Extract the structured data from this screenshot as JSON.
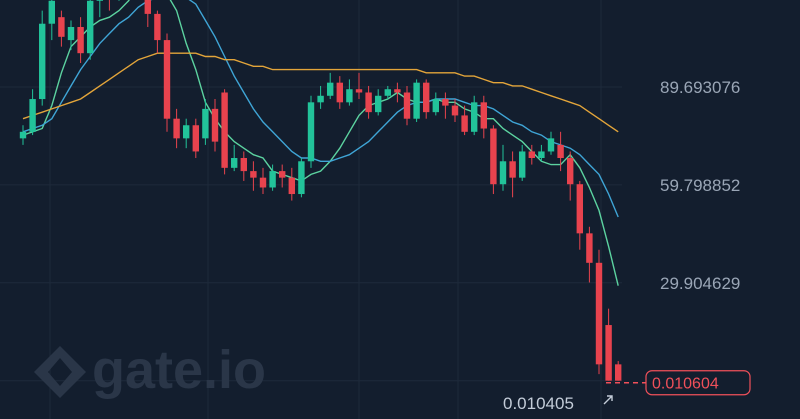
{
  "chart_data": {
    "type": "candlestick",
    "title": "",
    "watermark": "gate.io",
    "y_ticks": [
      {
        "value": 89.693076,
        "label": "89.693076"
      },
      {
        "value": 59.798852,
        "label": "59.798852"
      },
      {
        "value": 29.904629,
        "label": "29.904629"
      }
    ],
    "ylim": [
      -1,
      119.6
    ],
    "grid": true,
    "candles": [
      [
        74,
        76,
        72,
        78
      ],
      [
        76,
        86,
        75,
        89
      ],
      [
        86,
        109,
        84,
        113
      ],
      [
        109,
        116,
        104,
        120
      ],
      [
        111,
        105,
        102,
        113
      ],
      [
        104,
        108,
        101,
        110
      ],
      [
        108,
        100,
        97,
        111
      ],
      [
        100,
        116,
        98,
        119
      ],
      [
        116,
        123,
        111,
        126
      ],
      [
        123,
        118,
        113,
        125
      ],
      [
        118,
        127,
        116,
        130
      ],
      [
        127,
        124,
        119,
        129
      ],
      [
        124,
        121,
        118,
        128
      ],
      [
        121,
        112,
        108,
        124
      ],
      [
        112,
        104,
        100,
        113
      ],
      [
        104,
        80,
        76,
        106
      ],
      [
        80,
        74,
        71,
        83
      ],
      [
        74,
        78,
        71,
        80
      ],
      [
        78,
        70,
        68,
        80
      ],
      [
        74,
        83,
        72,
        86
      ],
      [
        83,
        73,
        70,
        86
      ],
      [
        88,
        65,
        63,
        89
      ],
      [
        65,
        68,
        64,
        72
      ],
      [
        68,
        64,
        61,
        70
      ],
      [
        64,
        62,
        58,
        67
      ],
      [
        62,
        59,
        57,
        65
      ],
      [
        59,
        64,
        58,
        66
      ],
      [
        64,
        62,
        59,
        66
      ],
      [
        62,
        57,
        55,
        65
      ],
      [
        57,
        67,
        56,
        68
      ],
      [
        67,
        85,
        65,
        87
      ],
      [
        85,
        87,
        83,
        90
      ],
      [
        87,
        91,
        86,
        94
      ],
      [
        91,
        85,
        83,
        93
      ],
      [
        85,
        89,
        84,
        92
      ],
      [
        89,
        88,
        86,
        94
      ],
      [
        88,
        82,
        80,
        90
      ],
      [
        82,
        87,
        81,
        89
      ],
      [
        87,
        89,
        86,
        90
      ],
      [
        89,
        88,
        85,
        91
      ],
      [
        88,
        80,
        78,
        90
      ],
      [
        80,
        91,
        79,
        92
      ],
      [
        91,
        82,
        80,
        92
      ],
      [
        82,
        86,
        81,
        88
      ],
      [
        86,
        84,
        80,
        88
      ],
      [
        84,
        81,
        79,
        86
      ],
      [
        81,
        76,
        75,
        84
      ],
      [
        76,
        85,
        75,
        87
      ],
      [
        85,
        77,
        74,
        87
      ],
      [
        77,
        60,
        57,
        78
      ],
      [
        60,
        67,
        58,
        72
      ],
      [
        67,
        62,
        56,
        70
      ],
      [
        62,
        70,
        61,
        72
      ],
      [
        70,
        68,
        66,
        72
      ],
      [
        68,
        70,
        67,
        72
      ],
      [
        70,
        74,
        69,
        76
      ],
      [
        72,
        68,
        64,
        76
      ],
      [
        68,
        60,
        55,
        70
      ],
      [
        60,
        45,
        40,
        61
      ],
      [
        45,
        36,
        30,
        47
      ],
      [
        36,
        5,
        2,
        40
      ],
      [
        17,
        0.0104,
        0.0104,
        22
      ],
      [
        5,
        0.0106,
        0.0104,
        6
      ]
    ],
    "moving_averages": [
      {
        "color": "#5cd3a0",
        "values": [
          75,
          76,
          77,
          84,
          94,
          102,
          105,
          108,
          110,
          111,
          113,
          116,
          121,
          123,
          122,
          118,
          113,
          103,
          95,
          85,
          80,
          76,
          73,
          71,
          69,
          68,
          64,
          63,
          62,
          61,
          63,
          64,
          67,
          71,
          76,
          81,
          84,
          85,
          86,
          88,
          86,
          85,
          85,
          86,
          85,
          85,
          83,
          82,
          80,
          80,
          77,
          75,
          73,
          70,
          67,
          66,
          66,
          69,
          65,
          59,
          52,
          41,
          29
        ]
      },
      {
        "color": "#3fa5d6",
        "values": [
          76,
          77,
          78,
          80,
          85,
          90,
          95,
          99,
          103,
          106,
          109,
          111,
          114,
          116,
          117,
          118,
          118,
          117,
          115,
          110,
          105,
          99,
          93,
          88,
          83,
          79,
          76,
          73,
          70,
          68,
          68,
          67,
          67,
          68,
          69,
          71,
          73,
          76,
          79,
          82,
          84,
          85,
          85,
          86,
          86,
          86,
          85,
          84,
          84,
          83,
          81,
          79,
          78,
          76,
          75,
          73,
          72,
          71,
          69,
          66,
          63,
          57,
          50
        ]
      },
      {
        "color": "#e3a53a",
        "values": [
          80,
          81,
          82,
          83,
          84,
          85,
          86,
          88,
          90,
          92,
          94,
          96,
          98,
          99,
          100,
          100,
          100,
          100,
          100,
          99,
          99,
          98,
          98,
          97,
          96,
          96,
          95,
          95,
          95,
          95,
          95,
          95,
          95,
          95,
          95,
          95,
          95,
          95,
          95,
          95,
          95,
          95,
          94,
          94,
          94,
          94,
          93,
          93,
          92,
          91,
          91,
          90,
          90,
          89,
          88,
          87,
          86,
          85,
          84,
          82,
          80,
          78,
          76
        ]
      }
    ],
    "last_price": "0.010604",
    "low_price": "0.010405"
  }
}
